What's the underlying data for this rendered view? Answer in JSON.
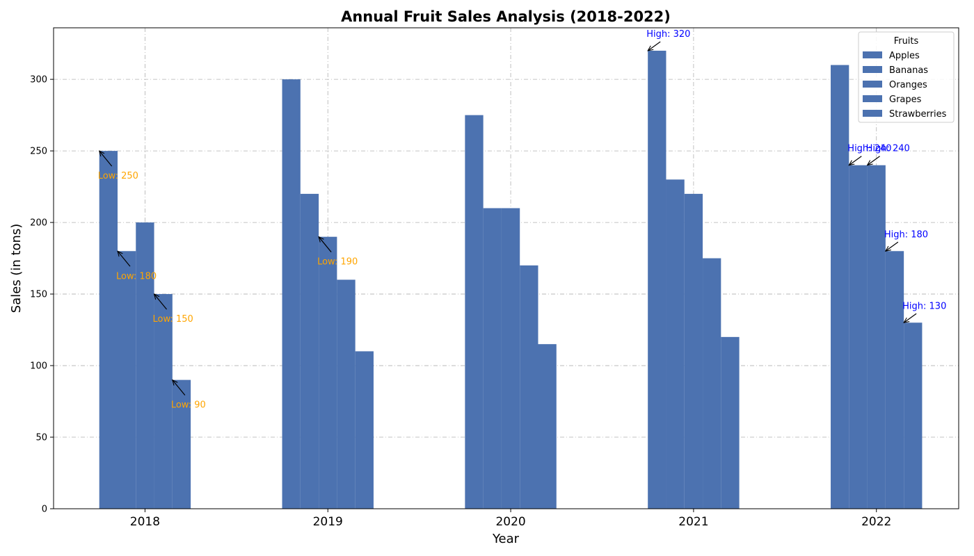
{
  "chart_data": {
    "type": "bar",
    "title": "Annual Fruit Sales Analysis (2018-2022)",
    "xlabel": "Year",
    "ylabel": "Sales (in tons)",
    "ylim": [
      0,
      336
    ],
    "yticks": [
      0,
      50,
      100,
      150,
      200,
      250,
      300
    ],
    "grid": true,
    "legend_title": "Fruits",
    "legend_position": "top-right",
    "categories": [
      "2018",
      "2019",
      "2020",
      "2021",
      "2022"
    ],
    "series": [
      {
        "name": "Apples",
        "values": [
          250,
          300,
          275,
          320,
          310
        ]
      },
      {
        "name": "Bananas",
        "values": [
          180,
          220,
          210,
          230,
          240
        ]
      },
      {
        "name": "Oranges",
        "values": [
          200,
          190,
          210,
          220,
          240
        ]
      },
      {
        "name": "Grapes",
        "values": [
          150,
          160,
          170,
          175,
          180
        ]
      },
      {
        "name": "Strawberries",
        "values": [
          90,
          110,
          115,
          120,
          130
        ]
      }
    ],
    "annotations": [
      {
        "series": 0,
        "category": 0,
        "text": "Low: 250",
        "kind": "low"
      },
      {
        "series": 1,
        "category": 0,
        "text": "Low: 180",
        "kind": "low"
      },
      {
        "series": 3,
        "category": 0,
        "text": "Low: 150",
        "kind": "low"
      },
      {
        "series": 4,
        "category": 0,
        "text": "Low: 90",
        "kind": "low"
      },
      {
        "series": 2,
        "category": 1,
        "text": "Low: 190",
        "kind": "low"
      },
      {
        "series": 0,
        "category": 3,
        "text": "High: 320",
        "kind": "high"
      },
      {
        "series": 1,
        "category": 4,
        "text": "High: 240",
        "kind": "high"
      },
      {
        "series": 2,
        "category": 4,
        "text": "High: 240",
        "kind": "high"
      },
      {
        "series": 3,
        "category": 4,
        "text": "High: 180",
        "kind": "high"
      },
      {
        "series": 4,
        "category": 4,
        "text": "High: 130",
        "kind": "high"
      }
    ],
    "colors": {
      "bar": "#4c72b0",
      "low": "#ffa500",
      "high": "#0000ff",
      "grid": "#b0b0b0"
    }
  }
}
